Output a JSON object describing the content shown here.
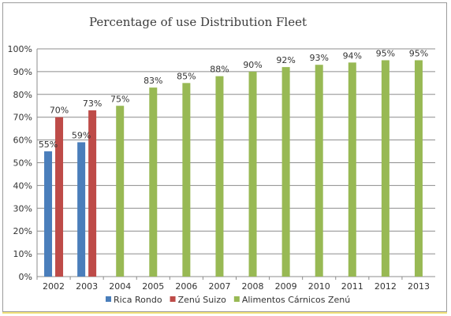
{
  "chart_data": {
    "type": "bar",
    "title": "Percentage of use Distribution Fleet",
    "xlabel": "",
    "ylabel": "",
    "categories": [
      "2002",
      "2003",
      "2004",
      "2005",
      "2006",
      "2007",
      "2008",
      "2009",
      "2010",
      "2011",
      "2012",
      "2013"
    ],
    "ylim": [
      0,
      100
    ],
    "yticks": [
      "0%",
      "10%",
      "20%",
      "30%",
      "40%",
      "50%",
      "60%",
      "70%",
      "80%",
      "90%",
      "100%"
    ],
    "grid": true,
    "legend_position": "bottom",
    "series": [
      {
        "name": "Rica Rondo",
        "color": "#4a7ebb",
        "values": [
          55,
          59,
          null,
          null,
          null,
          null,
          null,
          null,
          null,
          null,
          null,
          null
        ],
        "labels": [
          "55%",
          "59%",
          "",
          "",
          "",
          "",
          "",
          "",
          "",
          "",
          "",
          ""
        ]
      },
      {
        "name": "Zenú Suizo",
        "color": "#be4b48",
        "values": [
          70,
          73,
          null,
          null,
          null,
          null,
          null,
          null,
          null,
          null,
          null,
          null
        ],
        "labels": [
          "70%",
          "73%",
          "",
          "",
          "",
          "",
          "",
          "",
          "",
          "",
          "",
          ""
        ]
      },
      {
        "name": "Alimentos Cárnicos Zenú",
        "color": "#98b954",
        "values": [
          null,
          null,
          75,
          83,
          85,
          88,
          90,
          92,
          93,
          94,
          95,
          95
        ],
        "labels": [
          "",
          "",
          "75%",
          "83%",
          "85%",
          "88%",
          "90%",
          "92%",
          "93%",
          "94%",
          "95%",
          "95%"
        ]
      }
    ]
  }
}
